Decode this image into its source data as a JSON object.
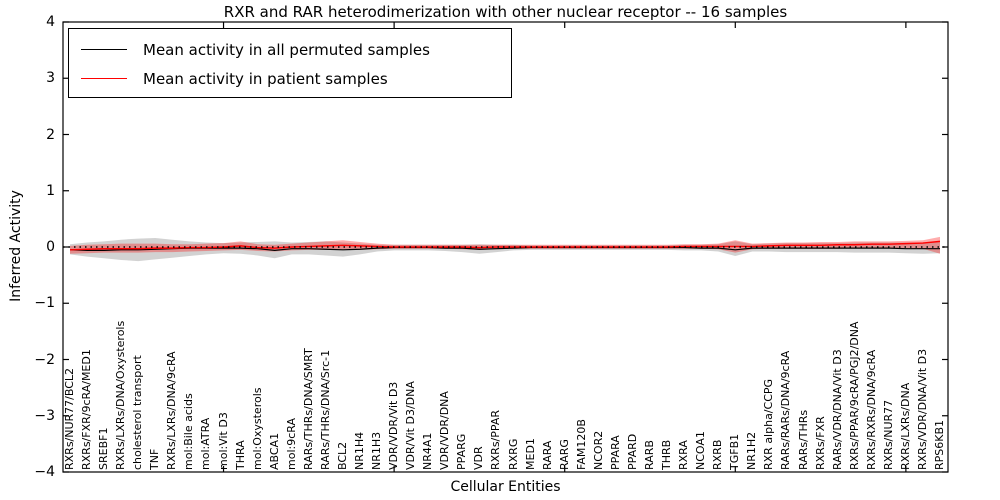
{
  "figure": {
    "title": "RXR and RAR heterodimerization with other nuclear receptor -- 16 samples",
    "xlabel": "Cellular Entities",
    "ylabel": "Inferred Activity"
  },
  "legend": {
    "items": [
      {
        "label": "Mean activity in all permuted samples",
        "color": "#000000"
      },
      {
        "label": "Mean activity in patient samples",
        "color": "#ff0000"
      }
    ]
  },
  "chart_data": {
    "type": "line",
    "title": "RXR and RAR heterodimerization with other nuclear receptor -- 16 samples",
    "xlabel": "Cellular Entities",
    "ylabel": "Inferred Activity",
    "ylim": [
      -4,
      4
    ],
    "ytick_values": [
      4,
      3,
      2,
      1,
      0,
      -1,
      -2,
      -3,
      -4
    ],
    "ytick_labels": [
      "4",
      "3",
      "2",
      "1",
      "0",
      "−1",
      "−2",
      "−3",
      "−4"
    ],
    "xtick_values": [
      10,
      20,
      30,
      40,
      50
    ],
    "grid": false,
    "legend_position": "upper left",
    "zero_line": {
      "y": 0,
      "color": "#000000",
      "style": "dotted"
    },
    "categories": [
      "RXRs/NUR77/BCL2",
      "RXRs/FXR/9cRA/MED1",
      "SREBF1",
      "RXRs/LXRs/DNA/Oxysterols",
      "cholesterol transport",
      "TNF",
      "RXRs/LXRs/DNA/9cRA",
      "mol:Bile acids",
      "mol:ATRA",
      "mol:Vit D3",
      "THRA",
      "mol:Oxysterols",
      "ABCA1",
      "mol:9cRA",
      "RARs/THRs/DNA/SMRT",
      "RARs/THRs/DNA/Src-1",
      "BCL2",
      "NR1H4",
      "NR1H3",
      "VDR/VDR/Vit D3",
      "VDR/Vit D3/DNA",
      "NR4A1",
      "VDR/VDR/DNA",
      "PPARG",
      "VDR",
      "RXRs/PPAR",
      "RXRG",
      "MED1",
      "RARA",
      "RARG",
      "FAM120B",
      "NCOR2",
      "PPARA",
      "PPARD",
      "RARB",
      "THRB",
      "RXRA",
      "NCOA1",
      "RXRB",
      "TGFB1",
      "NR1H2",
      "RXR alpha/CCPG",
      "RARs/RARs/DNA/9cRA",
      "RARs/THRs",
      "RXRs/FXR",
      "RARs/VDR/DNA/Vit D3",
      "RXRs/PPAR/9cRA/PGJ2/DNA",
      "RXRs/RXRs/DNA/9cRA",
      "RXRs/NUR77",
      "RXRs/LXRs/DNA",
      "RXRs/VDR/DNA/Vit D3",
      "RPS6KB1"
    ],
    "series": [
      {
        "name": "Mean activity in all permuted samples",
        "color": "#000000",
        "band_color": "rgba(125,125,125,0.35)",
        "values": [
          -0.05,
          -0.06,
          -0.06,
          -0.05,
          -0.05,
          -0.04,
          -0.03,
          -0.02,
          -0.02,
          -0.02,
          -0.02,
          -0.03,
          -0.06,
          -0.03,
          -0.03,
          -0.04,
          -0.05,
          -0.04,
          -0.02,
          -0.01,
          -0.01,
          -0.01,
          -0.02,
          -0.02,
          -0.04,
          -0.03,
          -0.02,
          -0.01,
          -0.01,
          -0.01,
          -0.01,
          -0.01,
          -0.01,
          -0.01,
          -0.01,
          -0.01,
          -0.01,
          -0.02,
          -0.02,
          -0.05,
          -0.02,
          -0.02,
          -0.02,
          -0.02,
          -0.02,
          -0.02,
          -0.02,
          -0.02,
          -0.02,
          -0.03,
          -0.03,
          -0.03
        ],
        "band_upper": [
          0.05,
          0.08,
          0.1,
          0.13,
          0.15,
          0.16,
          0.13,
          0.1,
          0.08,
          0.07,
          0.08,
          0.09,
          0.1,
          0.08,
          0.09,
          0.1,
          0.08,
          0.06,
          0.04,
          0.04,
          0.04,
          0.04,
          0.04,
          0.04,
          0.05,
          0.04,
          0.04,
          0.03,
          0.03,
          0.03,
          0.03,
          0.03,
          0.03,
          0.03,
          0.03,
          0.03,
          0.04,
          0.04,
          0.05,
          0.1,
          0.05,
          0.06,
          0.07,
          0.07,
          0.07,
          0.07,
          0.08,
          0.08,
          0.08,
          0.08,
          0.08,
          0.09
        ],
        "band_lower": [
          -0.13,
          -0.17,
          -0.2,
          -0.23,
          -0.25,
          -0.22,
          -0.19,
          -0.16,
          -0.13,
          -0.11,
          -0.12,
          -0.15,
          -0.2,
          -0.13,
          -0.13,
          -0.15,
          -0.17,
          -0.13,
          -0.08,
          -0.06,
          -0.06,
          -0.06,
          -0.07,
          -0.09,
          -0.12,
          -0.09,
          -0.06,
          -0.05,
          -0.05,
          -0.05,
          -0.05,
          -0.05,
          -0.05,
          -0.05,
          -0.05,
          -0.05,
          -0.06,
          -0.06,
          -0.08,
          -0.16,
          -0.08,
          -0.08,
          -0.09,
          -0.09,
          -0.09,
          -0.09,
          -0.1,
          -0.1,
          -0.1,
          -0.11,
          -0.12,
          -0.11
        ]
      },
      {
        "name": "Mean activity in patient samples",
        "color": "#ff0000",
        "band_color": "rgba(255,0,0,0.32)",
        "values": [
          -0.05,
          -0.04,
          -0.03,
          -0.03,
          -0.03,
          -0.02,
          -0.02,
          -0.01,
          -0.01,
          0,
          0.02,
          -0.01,
          -0.02,
          0,
          0.01,
          0.02,
          0.03,
          0.02,
          0.01,
          0,
          0,
          0,
          0,
          0,
          -0.01,
          0,
          0,
          0,
          0,
          0,
          0,
          0,
          0,
          0,
          0,
          0,
          0.01,
          0.01,
          0.01,
          0.01,
          0.01,
          0.02,
          0.03,
          0.03,
          0.03,
          0.04,
          0.04,
          0.05,
          0.05,
          0.06,
          0.07,
          0.1
        ],
        "band_upper": [
          0.02,
          0.04,
          0.05,
          0.06,
          0.06,
          0.06,
          0.05,
          0.05,
          0.06,
          0.07,
          0.1,
          0.05,
          0.04,
          0.06,
          0.08,
          0.1,
          0.12,
          0.09,
          0.06,
          0.04,
          0.04,
          0.04,
          0.04,
          0.04,
          0.04,
          0.04,
          0.04,
          0.04,
          0.04,
          0.04,
          0.04,
          0.04,
          0.04,
          0.04,
          0.04,
          0.04,
          0.05,
          0.05,
          0.06,
          0.12,
          0.06,
          0.07,
          0.08,
          0.08,
          0.09,
          0.09,
          0.1,
          0.1,
          0.1,
          0.11,
          0.12,
          0.18
        ],
        "band_lower": [
          -0.12,
          -0.11,
          -0.1,
          -0.1,
          -0.1,
          -0.09,
          -0.09,
          -0.08,
          -0.07,
          -0.06,
          -0.05,
          -0.07,
          -0.08,
          -0.06,
          -0.05,
          -0.05,
          -0.05,
          -0.05,
          -0.04,
          -0.03,
          -0.03,
          -0.03,
          -0.03,
          -0.04,
          -0.05,
          -0.04,
          -0.03,
          -0.03,
          -0.03,
          -0.03,
          -0.03,
          -0.03,
          -0.03,
          -0.03,
          -0.03,
          -0.03,
          -0.03,
          -0.03,
          -0.04,
          -0.1,
          -0.04,
          -0.03,
          -0.03,
          -0.03,
          -0.03,
          -0.03,
          -0.02,
          -0.02,
          -0.02,
          -0.02,
          -0.03,
          -0.12
        ]
      }
    ]
  }
}
